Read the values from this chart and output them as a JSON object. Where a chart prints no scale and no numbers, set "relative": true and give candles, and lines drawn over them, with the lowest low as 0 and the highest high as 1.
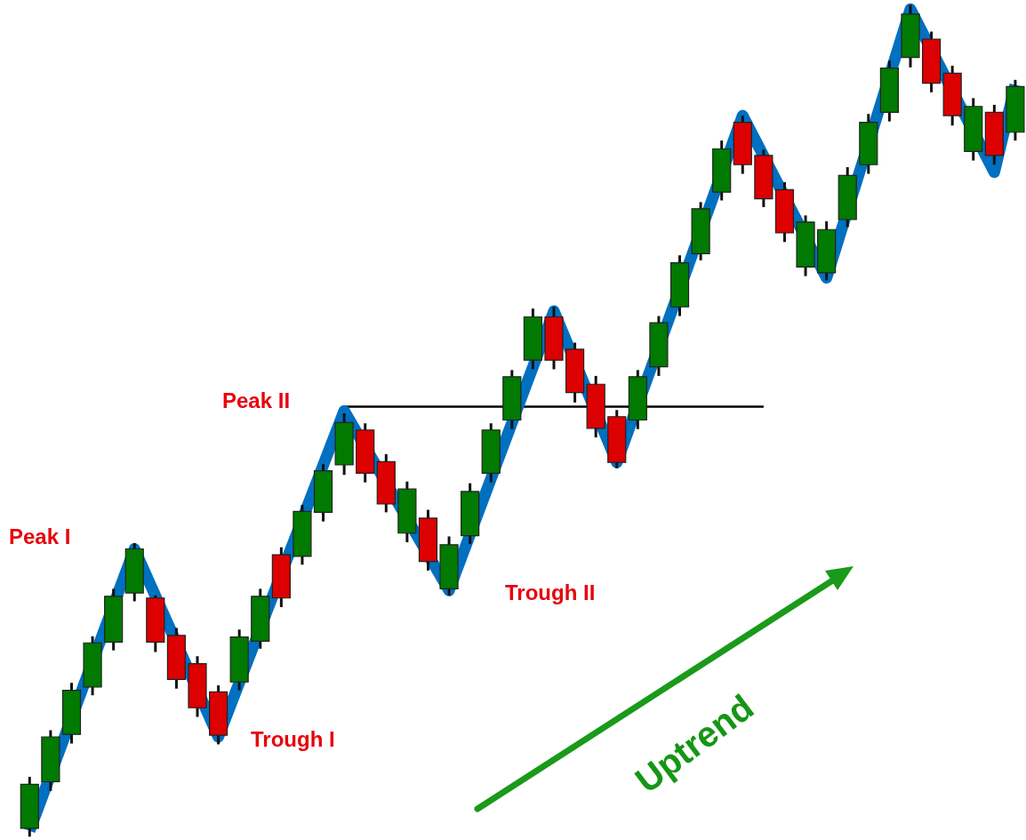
{
  "chart_data": {
    "type": "candlestick",
    "relative": true,
    "tick_labels": false,
    "categories": [
      null,
      null,
      null,
      null,
      null,
      null,
      null,
      null,
      null,
      null,
      null,
      null,
      null,
      null,
      null,
      null,
      null,
      null,
      null,
      null,
      null,
      null,
      null,
      null,
      null,
      null,
      null,
      null,
      null,
      null,
      null,
      null,
      null,
      null,
      null,
      null,
      null,
      null,
      null,
      null,
      null,
      null,
      null,
      null,
      null,
      null,
      null,
      null
    ],
    "ohlc": [
      [
        0.01,
        0.072,
        0,
        0.063
      ],
      [
        0.066,
        0.128,
        0.055,
        0.12
      ],
      [
        0.123,
        0.185,
        0.112,
        0.176
      ],
      [
        0.18,
        0.241,
        0.17,
        0.233
      ],
      [
        0.234,
        0.298,
        0.224,
        0.289
      ],
      [
        0.293,
        0.353,
        0.283,
        0.346
      ],
      [
        0.287,
        0.29,
        0.222,
        0.234
      ],
      [
        0.242,
        0.251,
        0.178,
        0.189
      ],
      [
        0.208,
        0.217,
        0.144,
        0.155
      ],
      [
        0.174,
        0.182,
        0.111,
        0.122
      ],
      [
        0.186,
        0.249,
        0.176,
        0.24
      ],
      [
        0.235,
        0.298,
        0.226,
        0.289
      ],
      [
        0.339,
        0.348,
        0.276,
        0.287
      ],
      [
        0.337,
        0.399,
        0.327,
        0.391
      ],
      [
        0.39,
        0.448,
        0.379,
        0.44
      ],
      [
        0.447,
        0.509,
        0.435,
        0.498
      ],
      [
        0.489,
        0.497,
        0.426,
        0.437
      ],
      [
        0.451,
        0.46,
        0.39,
        0.4
      ],
      [
        0.365,
        0.427,
        0.354,
        0.418
      ],
      [
        0.383,
        0.393,
        0.32,
        0.331
      ],
      [
        0.298,
        0.361,
        0.29,
        0.351
      ],
      [
        0.362,
        0.425,
        0.352,
        0.415
      ],
      [
        0.437,
        0.497,
        0.426,
        0.489
      ],
      [
        0.501,
        0.561,
        0.49,
        0.553
      ],
      [
        0.573,
        0.635,
        0.562,
        0.625
      ],
      [
        0.625,
        0.637,
        0.562,
        0.573
      ],
      [
        0.586,
        0.594,
        0.522,
        0.534
      ],
      [
        0.544,
        0.554,
        0.48,
        0.491
      ],
      [
        0.505,
        0.513,
        0.443,
        0.45
      ],
      [
        0.501,
        0.561,
        0.49,
        0.553
      ],
      [
        0.565,
        0.626,
        0.554,
        0.618
      ],
      [
        0.637,
        0.699,
        0.626,
        0.69
      ],
      [
        0.701,
        0.763,
        0.693,
        0.755
      ],
      [
        0.775,
        0.837,
        0.765,
        0.827
      ],
      [
        0.859,
        0.867,
        0.797,
        0.808
      ],
      [
        0.819,
        0.826,
        0.757,
        0.767
      ],
      [
        0.778,
        0.787,
        0.715,
        0.726
      ],
      [
        0.685,
        0.747,
        0.674,
        0.739
      ],
      [
        0.678,
        0.74,
        0.669,
        0.73
      ],
      [
        0.742,
        0.805,
        0.733,
        0.795
      ],
      [
        0.808,
        0.869,
        0.797,
        0.859
      ],
      [
        0.871,
        0.933,
        0.86,
        0.924
      ],
      [
        0.937,
        1,
        0.925,
        0.989
      ],
      [
        0.959,
        0.968,
        0.895,
        0.906
      ],
      [
        0.918,
        0.927,
        0.855,
        0.867
      ],
      [
        0.824,
        0.888,
        0.813,
        0.878
      ],
      [
        0.871,
        0.88,
        0.808,
        0.819
      ],
      [
        0.847,
        0.91,
        0.837,
        0.902
      ]
    ],
    "series": [
      {
        "type": "line",
        "color": "#0070c0",
        "values": [
          0.007,
          null,
          null,
          null,
          null,
          0.346,
          null,
          null,
          null,
          0.12,
          null,
          null,
          null,
          null,
          null,
          0.512,
          null,
          null,
          null,
          null,
          0.296,
          null,
          null,
          null,
          null,
          0.632,
          null,
          null,
          0.45,
          null,
          null,
          null,
          null,
          null,
          0.867,
          null,
          null,
          null,
          0.672,
          null,
          null,
          null,
          0.995,
          null,
          null,
          null,
          0.799,
          0.904
        ]
      }
    ],
    "ref_lines": [
      {
        "axis": "y",
        "value": 0.517,
        "color": "#000000"
      }
    ],
    "annotations": [
      "Peak I",
      "Peak II",
      "Trough I",
      "Trough II",
      "Uptrend"
    ]
  }
}
